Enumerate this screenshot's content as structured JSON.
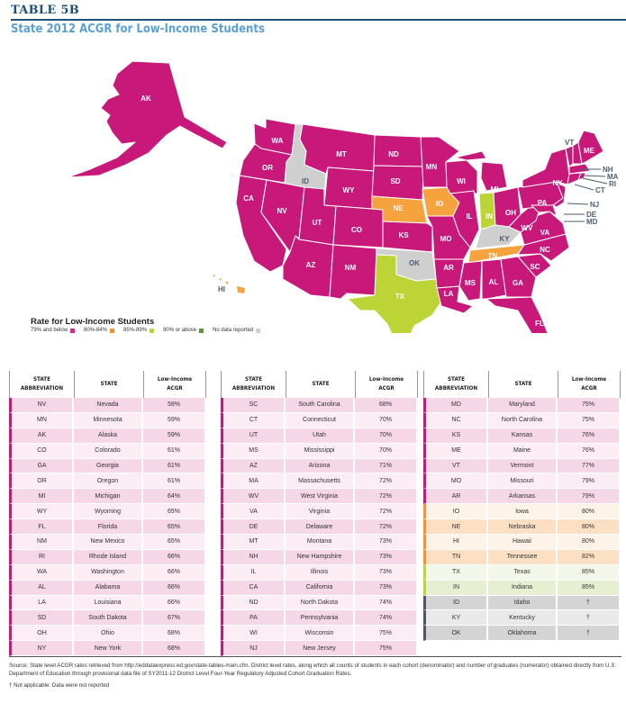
{
  "header": {
    "table_label": "TABLE 5B",
    "title": "State 2012 ACGR for Low-Income Students"
  },
  "colors": {
    "below_79": "#c8197b",
    "80_84": "#f6a23e",
    "85_89": "#bcd435",
    "90_above": "#5a9a3a",
    "no_data": "#cfcfcf",
    "row_pink_a": "#f5d7e7",
    "row_pink_b": "#fcecf4",
    "row_orange_a": "#fde0c4",
    "row_orange_b": "#fef3e8",
    "row_green_a": "#e6efd1",
    "row_green_b": "#f3f7ea",
    "row_gray_a": "#e9e9e9",
    "row_gray_b": "#d4d4d4",
    "bar_gray": "#4c5a60"
  },
  "legend": {
    "title": "Rate for Low-Income Students",
    "items": [
      {
        "label": "79% and below",
        "color": "#d8268a"
      },
      {
        "label": "80%-84%",
        "color": "#f6922b"
      },
      {
        "label": "85%-89%",
        "color": "#bcd435"
      },
      {
        "label": "90% or above",
        "color": "#5a9a3a"
      },
      {
        "label": "No data reported",
        "color": "#cfcfcf"
      }
    ]
  },
  "table_headers": {
    "abbr": [
      "STATE",
      "ABBREVIATION"
    ],
    "state": "STATE",
    "rate": [
      "Low-Income",
      "ACGR"
    ]
  },
  "chart_data": {
    "type": "table",
    "title": "State 2012 ACGR for Low-Income Students",
    "columns": [
      "STATE ABBREVIATION",
      "STATE",
      "Low-Income ACGR"
    ],
    "map_type": "choropleth",
    "legend": [
      "79% and below",
      "80%-84%",
      "85%-89%",
      "90% or above",
      "No data reported"
    ],
    "rows": [
      {
        "abbr": "NV",
        "state": "Nevada",
        "rate": "58%",
        "cat": "pink"
      },
      {
        "abbr": "MN",
        "state": "Minnesota",
        "rate": "59%",
        "cat": "pink"
      },
      {
        "abbr": "AK",
        "state": "Alaska",
        "rate": "59%",
        "cat": "pink"
      },
      {
        "abbr": "CO",
        "state": "Colorado",
        "rate": "61%",
        "cat": "pink"
      },
      {
        "abbr": "GA",
        "state": "Georgia",
        "rate": "61%",
        "cat": "pink"
      },
      {
        "abbr": "OR",
        "state": "Oregon",
        "rate": "61%",
        "cat": "pink"
      },
      {
        "abbr": "MI",
        "state": "Michigan",
        "rate": "64%",
        "cat": "pink"
      },
      {
        "abbr": "WY",
        "state": "Wyoming",
        "rate": "65%",
        "cat": "pink"
      },
      {
        "abbr": "FL",
        "state": "Florida",
        "rate": "65%",
        "cat": "pink"
      },
      {
        "abbr": "NM",
        "state": "New Mexico",
        "rate": "65%",
        "cat": "pink"
      },
      {
        "abbr": "RI",
        "state": "Rhode Island",
        "rate": "66%",
        "cat": "pink"
      },
      {
        "abbr": "WA",
        "state": "Washington",
        "rate": "66%",
        "cat": "pink"
      },
      {
        "abbr": "AL",
        "state": "Alabama",
        "rate": "66%",
        "cat": "pink"
      },
      {
        "abbr": "LA",
        "state": "Louisiana",
        "rate": "66%",
        "cat": "pink"
      },
      {
        "abbr": "SD",
        "state": "South Dakota",
        "rate": "67%",
        "cat": "pink"
      },
      {
        "abbr": "OH",
        "state": "Ohio",
        "rate": "68%",
        "cat": "pink"
      },
      {
        "abbr": "NY",
        "state": "New York",
        "rate": "68%",
        "cat": "pink"
      },
      {
        "abbr": "SC",
        "state": "South Carolina",
        "rate": "68%",
        "cat": "pink"
      },
      {
        "abbr": "CT",
        "state": "Connecticut",
        "rate": "70%",
        "cat": "pink"
      },
      {
        "abbr": "UT",
        "state": "Utah",
        "rate": "70%",
        "cat": "pink"
      },
      {
        "abbr": "MS",
        "state": "Mississippi",
        "rate": "70%",
        "cat": "pink"
      },
      {
        "abbr": "AZ",
        "state": "Arizona",
        "rate": "71%",
        "cat": "pink"
      },
      {
        "abbr": "MA",
        "state": "Massachusetts",
        "rate": "72%",
        "cat": "pink"
      },
      {
        "abbr": "WV",
        "state": "West Virginia",
        "rate": "72%",
        "cat": "pink"
      },
      {
        "abbr": "VA",
        "state": "Virginia",
        "rate": "72%",
        "cat": "pink"
      },
      {
        "abbr": "DE",
        "state": "Delaware",
        "rate": "72%",
        "cat": "pink"
      },
      {
        "abbr": "MT",
        "state": "Montana",
        "rate": "73%",
        "cat": "pink"
      },
      {
        "abbr": "NH",
        "state": "New Hampshire",
        "rate": "73%",
        "cat": "pink"
      },
      {
        "abbr": "IL",
        "state": "Illinois",
        "rate": "73%",
        "cat": "pink"
      },
      {
        "abbr": "CA",
        "state": "California",
        "rate": "73%",
        "cat": "pink"
      },
      {
        "abbr": "ND",
        "state": "North Dakota",
        "rate": "74%",
        "cat": "pink"
      },
      {
        "abbr": "PA",
        "state": "Pennsylvania",
        "rate": "74%",
        "cat": "pink"
      },
      {
        "abbr": "WI",
        "state": "Wisconsin",
        "rate": "75%",
        "cat": "pink"
      },
      {
        "abbr": "NJ",
        "state": "New Jersey",
        "rate": "75%",
        "cat": "pink"
      },
      {
        "abbr": "MD",
        "state": "Maryland",
        "rate": "75%",
        "cat": "pink"
      },
      {
        "abbr": "NC",
        "state": "North Carolina",
        "rate": "75%",
        "cat": "pink"
      },
      {
        "abbr": "KS",
        "state": "Kansas",
        "rate": "76%",
        "cat": "pink"
      },
      {
        "abbr": "ME",
        "state": "Maine",
        "rate": "76%",
        "cat": "pink"
      },
      {
        "abbr": "VT",
        "state": "Vermont",
        "rate": "77%",
        "cat": "pink"
      },
      {
        "abbr": "MO",
        "state": "Missouri",
        "rate": "79%",
        "cat": "pink"
      },
      {
        "abbr": "AR",
        "state": "Arkansas",
        "rate": "79%",
        "cat": "pink"
      },
      {
        "abbr": "IO",
        "state": "Iowa",
        "rate": "80%",
        "cat": "orange"
      },
      {
        "abbr": "NE",
        "state": "Nebraska",
        "rate": "80%",
        "cat": "orange"
      },
      {
        "abbr": "HI",
        "state": "Hawaii",
        "rate": "80%",
        "cat": "orange"
      },
      {
        "abbr": "TN",
        "state": "Tennessee",
        "rate": "82%",
        "cat": "orange"
      },
      {
        "abbr": "TX",
        "state": "Texas",
        "rate": "85%",
        "cat": "green"
      },
      {
        "abbr": "IN",
        "state": "Indiana",
        "rate": "85%",
        "cat": "green"
      },
      {
        "abbr": "ID",
        "state": "Idaho",
        "rate": "†",
        "cat": "gray"
      },
      {
        "abbr": "KY",
        "state": "Kentucky",
        "rate": "†",
        "cat": "gray"
      },
      {
        "abbr": "OK",
        "state": "Oklahoma",
        "rate": "†",
        "cat": "gray"
      }
    ]
  },
  "footer": {
    "source": "Source:  State level ACGR rates retrieved from http://eddataexpress.ed.gov/state-tables-main.cfm. District level rates, along which all counts of students in each cohort (denominator) and number of graduates (numerator) obtained directly from U.S. Department of Education through provisional data file of SY2011-12 District Level Four-Year Regulatory Adjusted Cohort Graduation Rates.",
    "note": "† Not applicable: Data were not reported"
  }
}
